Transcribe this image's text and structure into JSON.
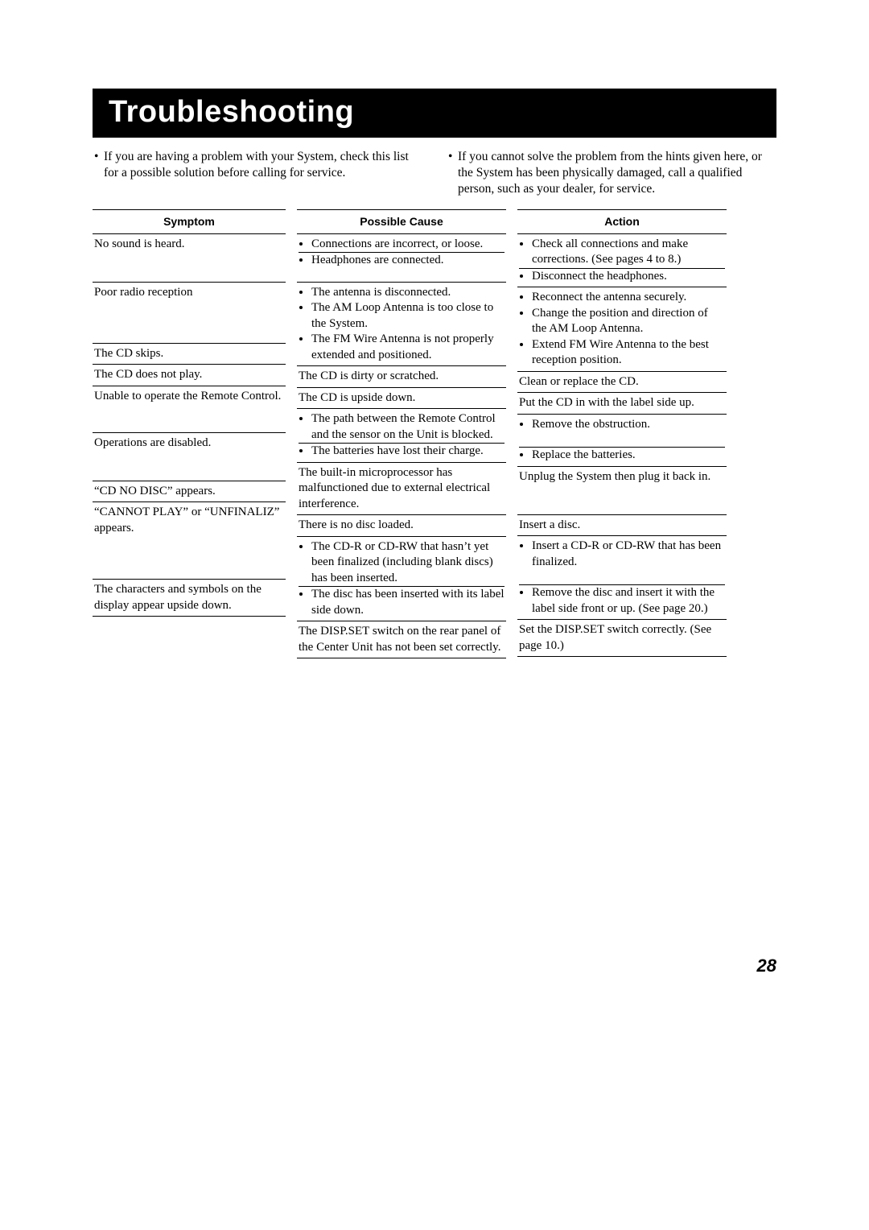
{
  "title": "Troubleshooting",
  "intro": {
    "left": "If you are having a problem with your System, check this list for a possible solution before calling for service.",
    "right": "If you cannot solve the problem from the hints given here, or the System has been physically damaged, call a qualified person, such as your dealer, for service."
  },
  "headers": {
    "symptom": "Symptom",
    "cause": "Possible Cause",
    "action": "Action"
  },
  "rows": [
    {
      "symptom": "No sound is heard.",
      "cause": [
        "Connections are incorrect, or loose.",
        "Headphones are connected."
      ],
      "action": [
        "Check all connections and make corrections. (See pages 4 to 8.)",
        "Disconnect the headphones."
      ],
      "cause_split_after": 0,
      "action_split_after": 0
    },
    {
      "symptom": "Poor radio reception",
      "cause": [
        "The antenna is disconnected.",
        "The AM Loop Antenna is too close to the System.",
        "The FM Wire Antenna is not properly extended and positioned."
      ],
      "action": [
        "Reconnect the antenna securely.",
        "Change the position and direction of the AM Loop Antenna.",
        "Extend FM Wire Antenna to the best reception position."
      ]
    },
    {
      "symptom": "The CD skips.",
      "cause_plain": "The CD is dirty or scratched.",
      "action_plain": "Clean or replace the CD."
    },
    {
      "symptom": "The CD does not play.",
      "cause_plain": "The CD is upside down.",
      "action_plain": "Put the CD in with the label side up."
    },
    {
      "symptom": "Unable to operate the Remote Control.",
      "cause": [
        "The path between the Remote Control and the sensor on the Unit is blocked.",
        "The batteries have lost their charge."
      ],
      "action": [
        "Remove the obstruction.",
        "Replace the batteries."
      ],
      "cause_split_after": 0,
      "action_split_after": 0,
      "action_pad_first": true
    },
    {
      "symptom": "Operations are disabled.",
      "cause_plain": "The built-in microprocessor has malfunctioned due to external electrical interference.",
      "action_plain": "Unplug the System then plug it back in."
    },
    {
      "symptom": "“CD NO DISC” appears.",
      "cause_plain": "There is no disc loaded.",
      "action_plain": "Insert a disc."
    },
    {
      "symptom": "“CANNOT PLAY” or “UNFINALIZ” appears.",
      "cause": [
        "The CD-R or CD-RW that hasn’t yet been finalized (including blank discs) has been inserted.",
        "The disc has been inserted with its label side down."
      ],
      "action": [
        "Insert a CD-R or CD-RW that has been finalized.",
        "Remove the disc and insert it with the label side front or up. (See page 20.)"
      ],
      "cause_split_after": 0,
      "action_split_after": 0,
      "action_pad_first": true
    },
    {
      "symptom": "The characters and symbols on the display appear upside down.",
      "cause_plain": "The DISP.SET switch on the rear panel of the Center Unit has not been set correctly.",
      "action_plain": "Set the DISP.SET switch correctly. (See page 10.)"
    }
  ],
  "page_number": "28",
  "colors": {
    "bg": "#ffffff",
    "text": "#000000",
    "title_bg": "#000000",
    "title_fg": "#ffffff",
    "rule": "#000000"
  }
}
